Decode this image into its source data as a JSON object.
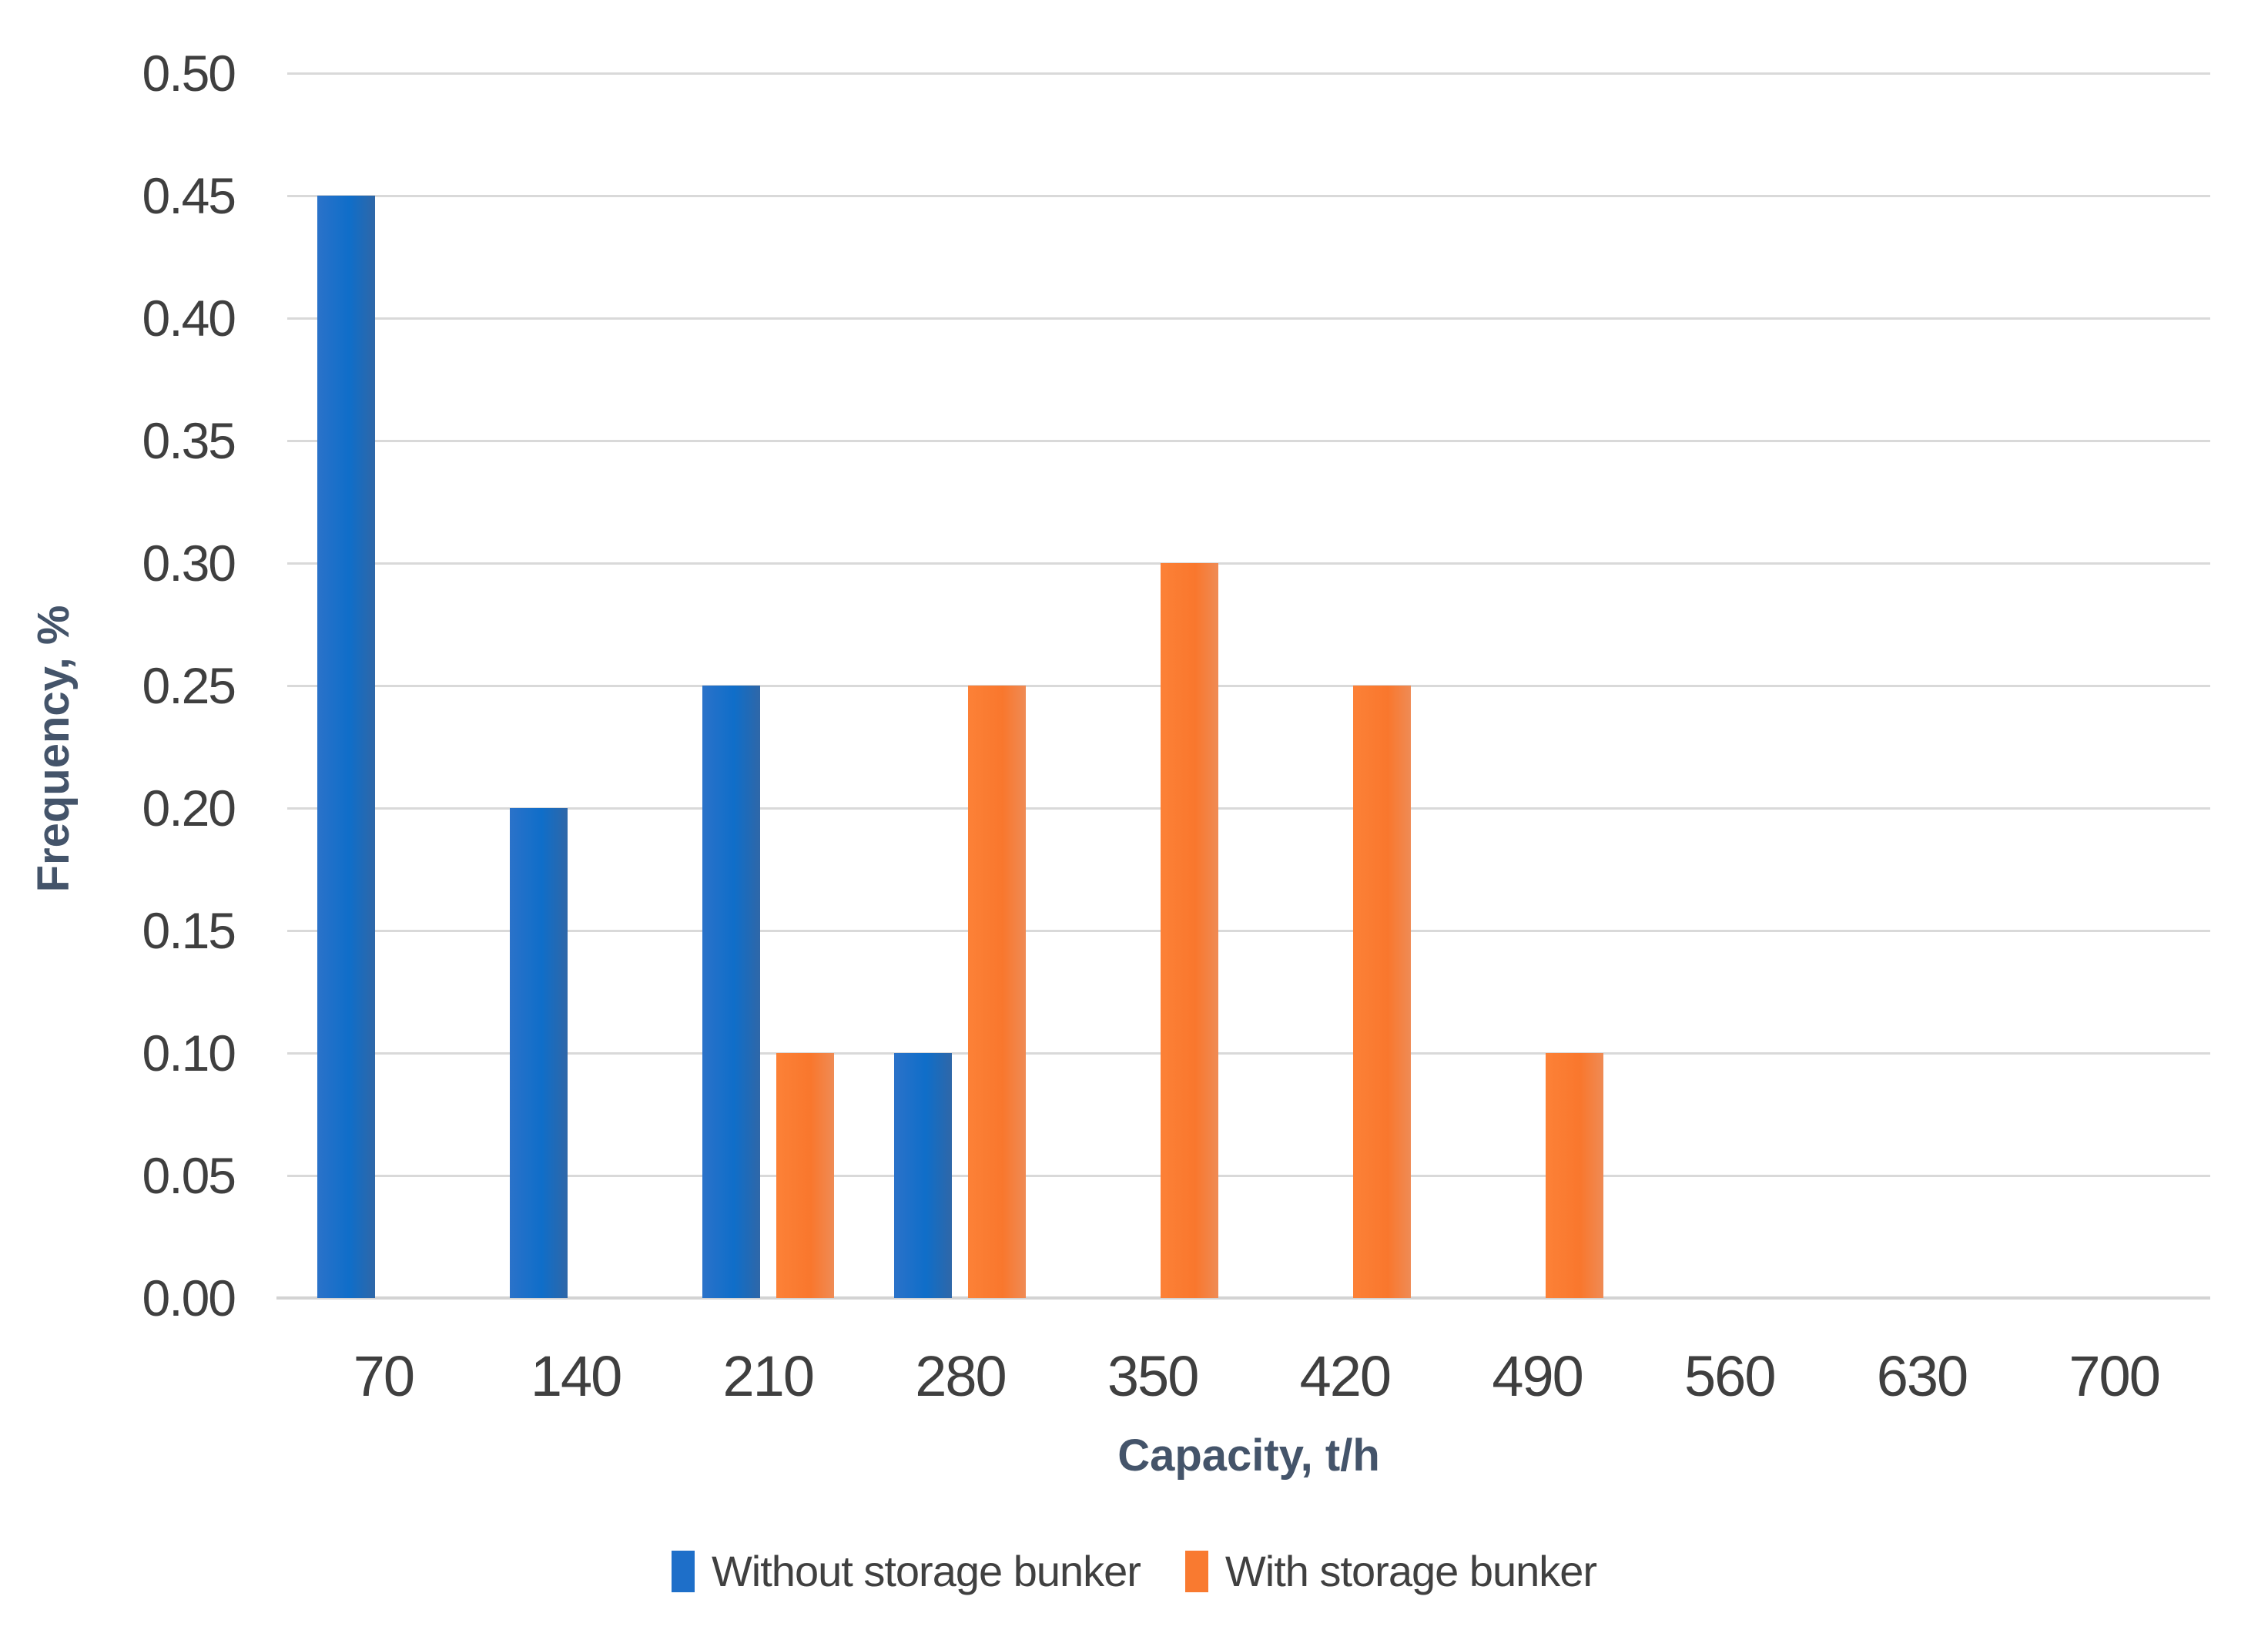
{
  "figure": {
    "background": "#ffffff"
  },
  "chart_data": {
    "type": "bar",
    "title": "",
    "xlabel": "Capacity, t/h",
    "ylabel": "Frequency, %",
    "categories": [
      "70",
      "140",
      "210",
      "280",
      "350",
      "420",
      "490",
      "560",
      "630",
      "700"
    ],
    "series": [
      {
        "name": "Without storage bunker",
        "color": "#1E6FC9",
        "values": [
          0.45,
          0.2,
          0.25,
          0.1,
          0,
          0,
          0,
          0,
          0,
          0
        ]
      },
      {
        "name": "With storage bunker",
        "color": "#F97A30",
        "values": [
          0,
          0,
          0.1,
          0.25,
          0.3,
          0.25,
          0.1,
          0,
          0,
          0
        ]
      }
    ],
    "ylim": [
      0,
      0.5
    ],
    "ytick_step": 0.05,
    "ytick_labels": [
      "0.00",
      "0.05",
      "0.10",
      "0.15",
      "0.20",
      "0.25",
      "0.30",
      "0.35",
      "0.40",
      "0.45",
      "0.50"
    ],
    "grid": true,
    "gridline_color": "#D9D9D9",
    "legend_position": "bottom"
  }
}
